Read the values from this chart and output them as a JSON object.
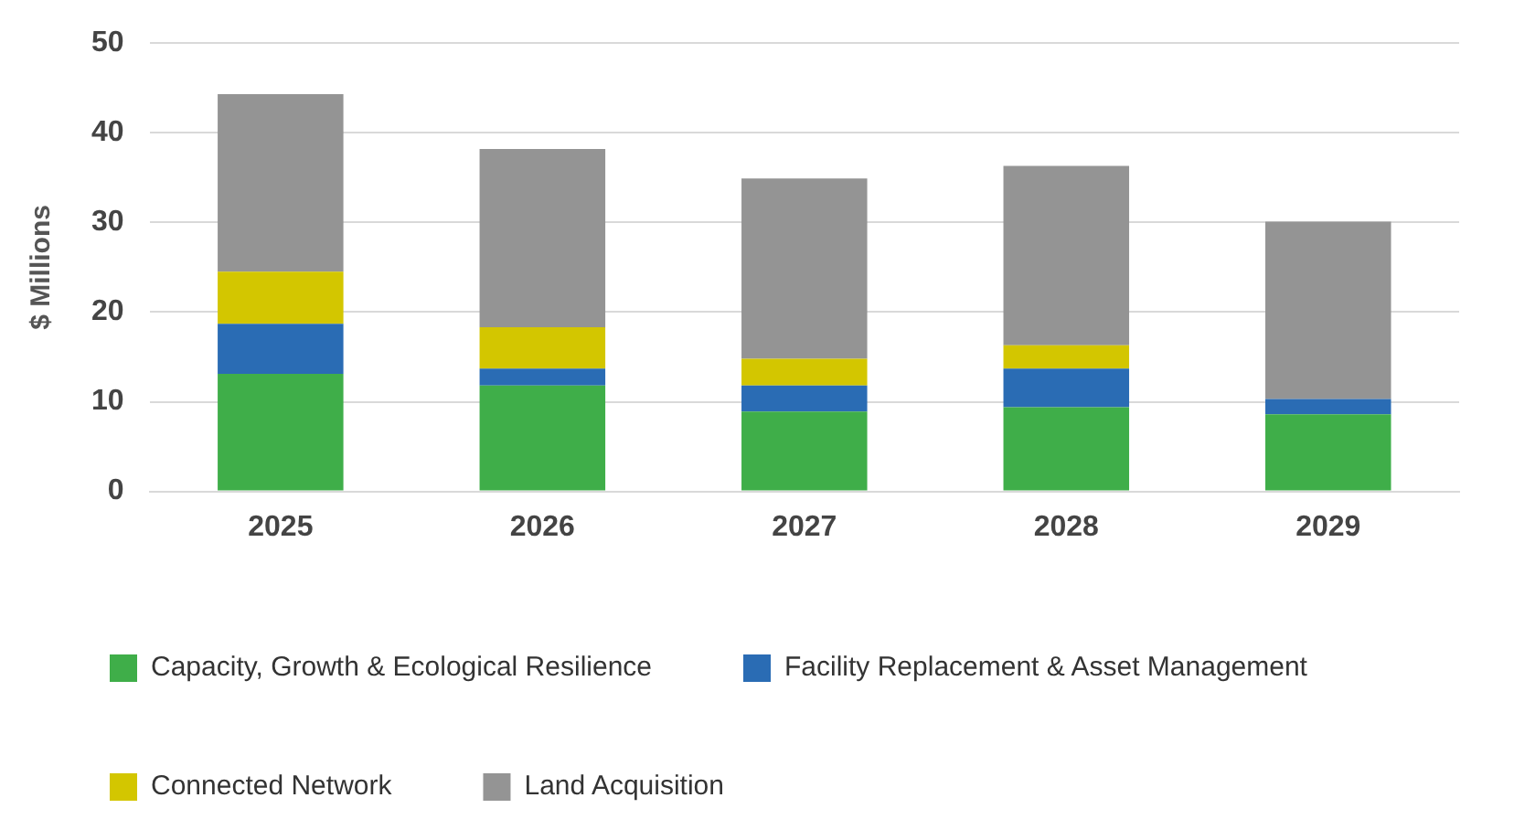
{
  "chart_data": {
    "type": "bar",
    "stacked": true,
    "ylabel": "$ Millions",
    "categories": [
      "2025",
      "2026",
      "2027",
      "2028",
      "2029"
    ],
    "series": [
      {
        "name": "Capacity, Growth & Ecological Resilience",
        "color": "#3fae49",
        "values": [
          13.1,
          11.8,
          8.9,
          9.4,
          8.6
        ]
      },
      {
        "name": "Facility Replacement & Asset Management",
        "color": "#2a6cb4",
        "values": [
          5.6,
          1.9,
          2.9,
          4.3,
          1.7
        ]
      },
      {
        "name": "Connected Network",
        "color": "#d3c600",
        "values": [
          5.8,
          4.6,
          3.0,
          2.6,
          0
        ]
      },
      {
        "name": "Land Acquisition",
        "color": "#949494",
        "values": [
          19.8,
          19.9,
          20.1,
          20.0,
          19.8
        ]
      }
    ],
    "ylim": [
      0,
      50
    ],
    "yticks": [
      0,
      10,
      20,
      30,
      40,
      50
    ],
    "grid": "y",
    "legend": "bottom"
  }
}
